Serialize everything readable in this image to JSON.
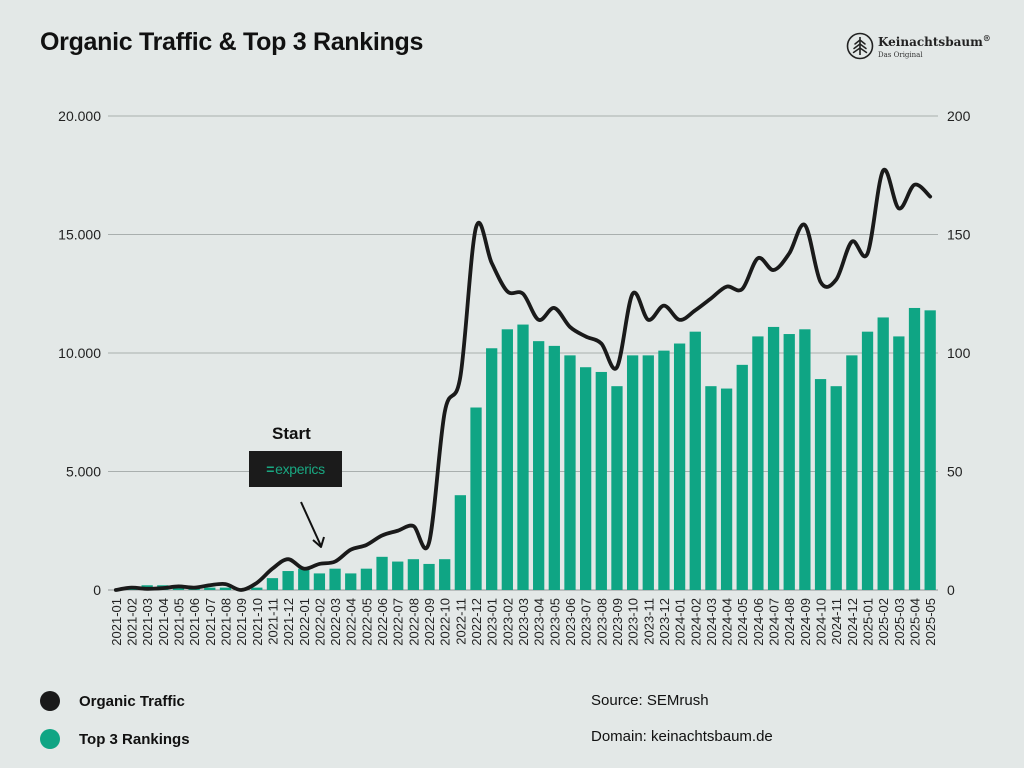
{
  "page": {
    "background": "#e3e8e7"
  },
  "brand": {
    "name": "Keinachtsbaum",
    "mark": "®",
    "sub": "Das Original"
  },
  "annotation": {
    "label": "Start",
    "badge": "experics",
    "badge_icon": "dash-icon"
  },
  "legend": [
    {
      "label": "Organic Traffic",
      "color": "#1a1a1a"
    },
    {
      "label": "Top 3 Rankings",
      "color": "#0fa584"
    }
  ],
  "info": {
    "source": "Source: SEMrush",
    "domain": "Domain: keinachtsbaum.de"
  },
  "chart_data": {
    "type": "bar+line",
    "title": "Organic Traffic & Top 3 Rankings",
    "categories": [
      "2021-01",
      "2021-02",
      "2021-03",
      "2021-04",
      "2021-05",
      "2021-06",
      "2021-07",
      "2021-08",
      "2021-09",
      "2021-10",
      "2021-11",
      "2021-12",
      "2022-01",
      "2022-02",
      "2022-03",
      "2022-04",
      "2022-05",
      "2022-06",
      "2022-07",
      "2022-08",
      "2022-09",
      "2022-10",
      "2022-11",
      "2022-12",
      "2023-01",
      "2023-02",
      "2023-03",
      "2023-04",
      "2023-05",
      "2023-06",
      "2023-07",
      "2023-08",
      "2023-09",
      "2023-10",
      "2023-11",
      "2023-12",
      "2024-01",
      "2024-02",
      "2024-03",
      "2024-04",
      "2024-05",
      "2024-06",
      "2024-07",
      "2024-08",
      "2024-09",
      "2024-10",
      "2024-11",
      "2024-12",
      "2025-01",
      "2025-02",
      "2025-03",
      "2025-04",
      "2025-05"
    ],
    "series": [
      {
        "name": "Top 3 Rankings",
        "type": "bar",
        "axis": "right",
        "color": "#0fa584",
        "values": [
          0,
          1,
          2,
          2,
          1,
          1,
          1,
          1,
          0,
          1,
          5,
          8,
          9,
          7,
          9,
          7,
          9,
          14,
          12,
          13,
          11,
          13,
          40,
          77,
          102,
          110,
          112,
          105,
          103,
          99,
          94,
          92,
          86,
          99,
          99,
          101,
          104,
          109,
          86,
          85,
          95,
          107,
          111,
          108,
          110,
          89,
          86,
          99,
          109,
          115,
          107,
          119,
          118
        ]
      },
      {
        "name": "Organic Traffic",
        "type": "line",
        "axis": "left",
        "color": "#1a1a1a",
        "values": [
          0,
          100,
          50,
          80,
          150,
          100,
          200,
          250,
          0,
          300,
          900,
          1300,
          900,
          1100,
          1200,
          1700,
          1900,
          2300,
          2500,
          2700,
          2000,
          7500,
          9000,
          15300,
          13800,
          12600,
          12500,
          11400,
          11900,
          11100,
          10700,
          10400,
          9400,
          12500,
          11400,
          12000,
          11400,
          11800,
          12300,
          12800,
          12700,
          14000,
          13500,
          14200,
          15400,
          13000,
          13100,
          14700,
          14200,
          17700,
          16100,
          17100,
          16600
        ]
      }
    ],
    "y_left": {
      "min": 0,
      "max": 20000,
      "ticks": [
        "0",
        "5.000",
        "10.000",
        "15.000",
        "20.000"
      ]
    },
    "y_right": {
      "min": 0,
      "max": 200,
      "ticks": [
        "0",
        "50",
        "100",
        "150",
        "200"
      ]
    },
    "grid": true,
    "legend": "bottom-left"
  }
}
